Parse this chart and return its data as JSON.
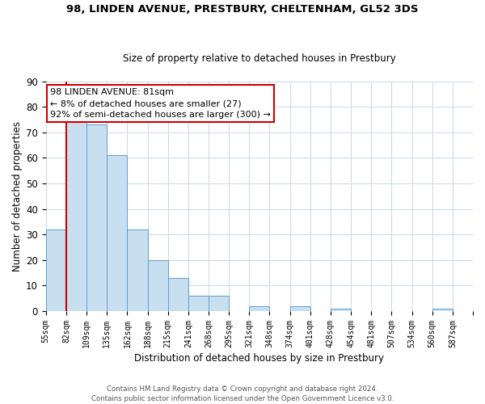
{
  "title": "98, LINDEN AVENUE, PRESTBURY, CHELTENHAM, GL52 3DS",
  "subtitle": "Size of property relative to detached houses in Prestbury",
  "xlabel": "Distribution of detached houses by size in Prestbury",
  "ylabel": "Number of detached properties",
  "bar_color": "#c8dff0",
  "bar_edge_color": "#5a9fd4",
  "background_color": "#ffffff",
  "grid_color": "#c8d8ec",
  "bin_labels": [
    "55sqm",
    "82sqm",
    "109sqm",
    "135sqm",
    "162sqm",
    "188sqm",
    "215sqm",
    "241sqm",
    "268sqm",
    "295sqm",
    "321sqm",
    "348sqm",
    "374sqm",
    "401sqm",
    "428sqm",
    "454sqm",
    "481sqm",
    "507sqm",
    "534sqm",
    "560sqm",
    "587sqm"
  ],
  "bar_heights": [
    32,
    76,
    73,
    61,
    32,
    20,
    13,
    6,
    6,
    0,
    2,
    0,
    2,
    0,
    1,
    0,
    0,
    0,
    0,
    1,
    0
  ],
  "ylim": [
    0,
    90
  ],
  "yticks": [
    0,
    10,
    20,
    30,
    40,
    50,
    60,
    70,
    80,
    90
  ],
  "vline_x": 1,
  "vline_color": "#cc0000",
  "annotation_title": "98 LINDEN AVENUE: 81sqm",
  "annotation_line1": "← 8% of detached houses are smaller (27)",
  "annotation_line2": "92% of semi-detached houses are larger (300) →",
  "annotation_box_color": "#ffffff",
  "annotation_box_edge": "#cc0000",
  "footer_line1": "Contains HM Land Registry data © Crown copyright and database right 2024.",
  "footer_line2": "Contains public sector information licensed under the Open Government Licence v3.0."
}
